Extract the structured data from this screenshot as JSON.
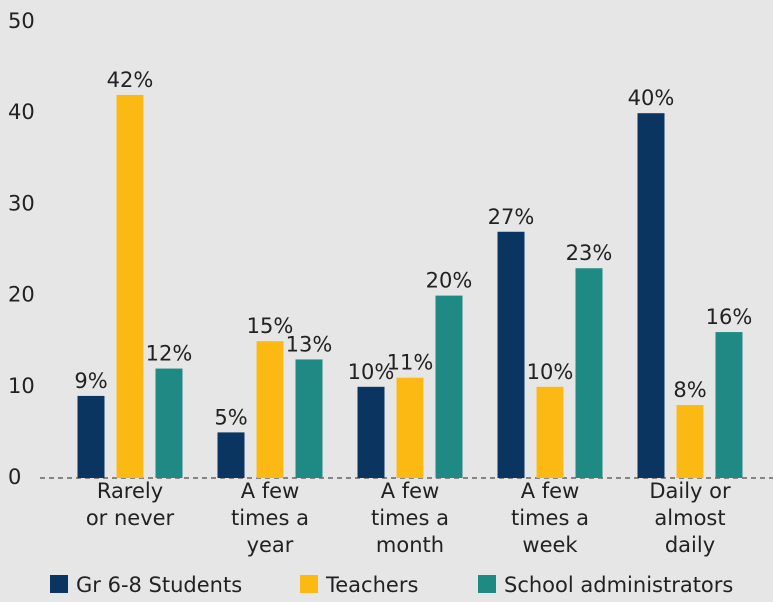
{
  "chart_data": {
    "type": "bar",
    "categories": [
      "Rarely or never",
      "A few times a year",
      "A few times a month",
      "A few times a week",
      "Daily or almost daily"
    ],
    "series": [
      {
        "name": "Gr 6-8 Students",
        "color": "#0b3561",
        "values": [
          9,
          5,
          10,
          27,
          40
        ],
        "value_labels": [
          "9%",
          "5%",
          "10%",
          "27%",
          "40%"
        ]
      },
      {
        "name": "Teachers",
        "color": "#fdb913",
        "values": [
          42,
          15,
          11,
          10,
          8
        ],
        "value_labels": [
          "42%",
          "15%",
          "11%",
          "10%",
          "8%"
        ]
      },
      {
        "name": "School administrators",
        "color": "#1f8a84",
        "values": [
          12,
          13,
          20,
          23,
          16
        ],
        "value_labels": [
          "12%",
          "13%",
          "20%",
          "23%",
          "16%"
        ]
      }
    ],
    "ylim": [
      0,
      50
    ],
    "yticks": [
      0,
      10,
      20,
      30,
      40,
      50
    ],
    "grid": false,
    "legend": "bottom"
  }
}
